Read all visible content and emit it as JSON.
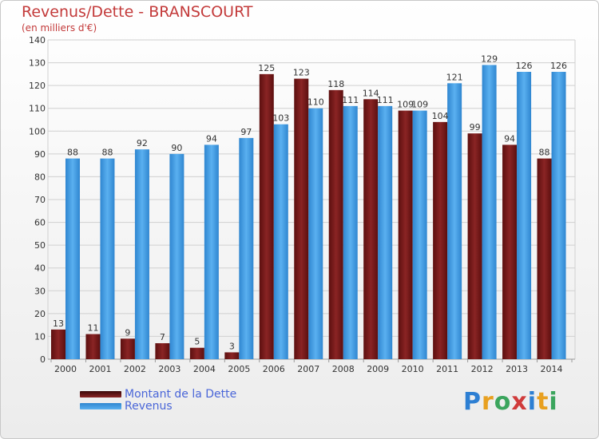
{
  "header": {
    "title": "Revenus/Dette - BRANSCOURT",
    "subtitle": "(en milliers d'€)"
  },
  "colors": {
    "dette": "#7a1a1a",
    "revenus": "#3d9ae6",
    "grid": "#d0d0d0",
    "axis_text": "#333333"
  },
  "legend": {
    "items": [
      {
        "label": "Montant de la Dette",
        "color": "#7a1a1a"
      },
      {
        "label": "Revenus",
        "color": "#3d9ae6"
      }
    ]
  },
  "logo": {
    "text": "Proxiti",
    "letter_colors": [
      "#2d7fd3",
      "#e8a020",
      "#3ba55d",
      "#d03b3b",
      "#2d7fd3",
      "#e8a020",
      "#3ba55d"
    ]
  },
  "chart_data": {
    "type": "bar",
    "title": "Revenus/Dette - BRANSCOURT",
    "subtitle": "(en milliers d'€)",
    "categories": [
      "2000",
      "2001",
      "2002",
      "2003",
      "2004",
      "2005",
      "2006",
      "2007",
      "2008",
      "2009",
      "2010",
      "2011",
      "2012",
      "2013",
      "2014"
    ],
    "series": [
      {
        "name": "Montant de la Dette",
        "values": [
          13,
          11,
          9,
          7,
          5,
          3,
          125,
          123,
          118,
          114,
          109,
          104,
          99,
          94,
          88
        ]
      },
      {
        "name": "Revenus",
        "values": [
          88,
          88,
          92,
          90,
          94,
          97,
          103,
          110,
          111,
          111,
          109,
          121,
          129,
          126,
          126
        ]
      }
    ],
    "ylim": [
      0,
      140
    ],
    "yticks": [
      0,
      10,
      20,
      30,
      40,
      50,
      60,
      70,
      80,
      90,
      100,
      110,
      120,
      130,
      140
    ],
    "grid": true,
    "legend_position": "bottom-left"
  }
}
